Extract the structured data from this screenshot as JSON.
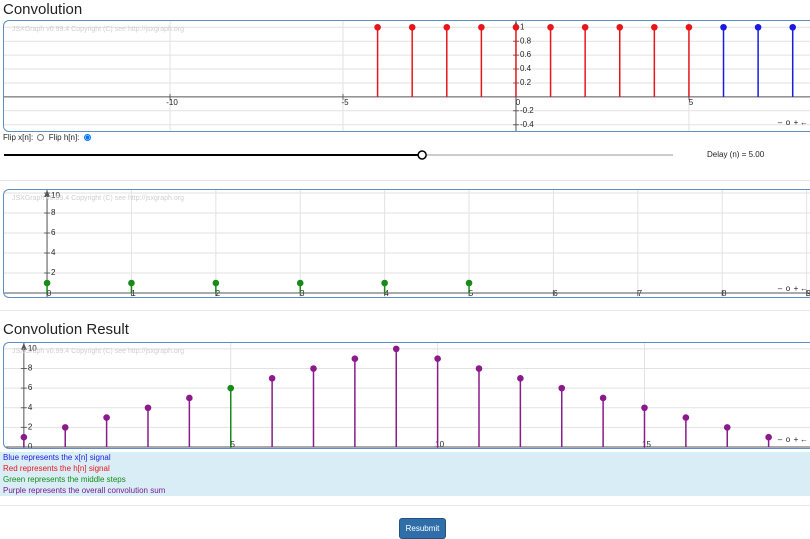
{
  "header": {
    "title": "Convolution"
  },
  "signal_board": {
    "type": "stem",
    "copyright": "JSXGraph v0.99.4 Copyright (C) see http://jsxgraph.org",
    "navigation": [
      "–",
      "o",
      "+",
      "←"
    ],
    "xlim": [
      -14.8,
      8.5
    ],
    "ylim": [
      -0.49,
      1.09
    ],
    "xticks": [
      -10,
      -5,
      0,
      5
    ],
    "yticks": [
      -0.4,
      -0.2,
      0.2,
      0.4,
      0.6,
      0.8,
      1
    ],
    "grid": true,
    "series": [
      {
        "color": "#e8161b",
        "x": [
          -4,
          -3,
          -2,
          -1,
          0,
          1,
          2,
          3,
          4,
          5
        ],
        "values": [
          1,
          1,
          1,
          1,
          1,
          1,
          1,
          1,
          1,
          1
        ]
      },
      {
        "color": "#1a1ae0",
        "x": [
          6,
          7,
          8
        ],
        "values": [
          1,
          1,
          1
        ]
      }
    ]
  },
  "controls": {
    "flip_x": "Flip x[n]:",
    "flip_h": "Flip h[n]:",
    "flip_h_checked": true,
    "slider_min": 0,
    "slider_max": 8,
    "delay_label": "Delay (n) =",
    "delay": {
      "value": 5,
      "label": "5.00"
    }
  },
  "steps_board": {
    "type": "stem",
    "copyright": "JSXGraph v0.99.4 Copyright (C) see http://jsxgraph.org",
    "navigation": [
      "–",
      "o",
      "+",
      "←"
    ],
    "xlim": [
      -0.51,
      9.04
    ],
    "ylim": [
      -0.4,
      10.3
    ],
    "xticks": [
      0,
      1,
      2,
      3,
      4,
      5,
      6,
      7,
      8,
      9
    ],
    "yticks": [
      2,
      4,
      6,
      8,
      10
    ],
    "grid": true,
    "series": [
      {
        "color": "#188a18",
        "x": [
          0,
          1,
          2,
          3,
          4,
          5
        ],
        "values": [
          1,
          1,
          1,
          1,
          1,
          1
        ]
      }
    ]
  },
  "result_title": "Convolution Result",
  "result_board": {
    "type": "stem",
    "copyright": "JSXGraph v0.99.4 Copyright (C) see http://jsxgraph.org",
    "navigation": [
      "–",
      "o",
      "+",
      "←"
    ],
    "xlim": [
      -0.48,
      19.0
    ],
    "ylim": [
      -0.1,
      10.6
    ],
    "xticks": [
      5,
      10,
      15
    ],
    "yticks": [
      0,
      2,
      4,
      6,
      8,
      10
    ],
    "grid": true,
    "series": [
      {
        "color": "#8b1a8b",
        "x": [
          0,
          1,
          2,
          3,
          4,
          6,
          7,
          8,
          9,
          10,
          11,
          12,
          13,
          14,
          15,
          16,
          17,
          18
        ],
        "values": [
          1,
          2,
          3,
          4,
          5,
          7,
          8,
          9,
          10,
          9,
          8,
          7,
          6,
          5,
          4,
          3,
          2,
          1
        ]
      },
      {
        "color": "#188a18",
        "x": [
          5
        ],
        "values": [
          6
        ]
      }
    ]
  },
  "legend": [
    {
      "text": "Blue represents the x[n] signal",
      "color": "#1a1ae0"
    },
    {
      "text": "Red represents the h[n] signal",
      "color": "#e8161b"
    },
    {
      "text": "Green represents the middle steps",
      "color": "#188a18"
    },
    {
      "text": "Purple represents the overall convolution sum",
      "color": "#7a1a8b"
    }
  ],
  "button": "Resubmit"
}
